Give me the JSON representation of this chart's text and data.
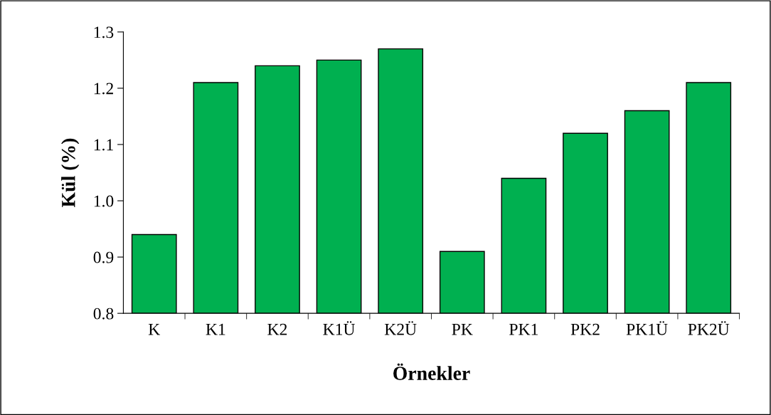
{
  "chart_data": {
    "type": "bar",
    "xlabel": "Örnekler",
    "ylabel": "Kül (%)",
    "categories": [
      "K",
      "K1",
      "K2",
      "K1Ü",
      "K2Ü",
      "PK",
      "PK1",
      "PK2",
      "PK1Ü",
      "PK2Ü"
    ],
    "values": [
      0.94,
      1.21,
      1.24,
      1.25,
      1.27,
      0.91,
      1.04,
      1.12,
      1.16,
      1.21
    ],
    "color": "#00b050",
    "ylim": [
      0.8,
      1.3
    ],
    "yticks": [
      0.8,
      0.9,
      {
        "value": 1,
        "label": "1.0"
      },
      1.1,
      1.2,
      1.3
    ],
    "grid": false,
    "legend": false
  }
}
